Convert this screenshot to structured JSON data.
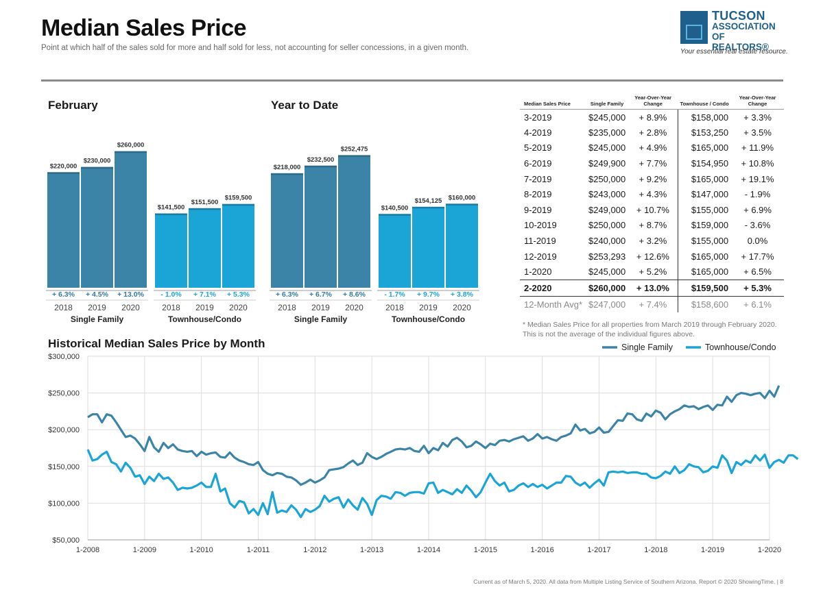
{
  "header": {
    "title": "Median Sales Price",
    "subtitle": "Point at which half of the sales sold for more and half sold for less, not accounting for seller concessions, in a given month."
  },
  "logo": {
    "line1": "TUCSON",
    "line2": "ASSOCIATION",
    "line3": "OF REALTORS®",
    "tagline": "Your essential real estate resource."
  },
  "colors": {
    "single_family": "#3b84a8",
    "townhouse": "#1aa5d6",
    "gridline": "#dddddd"
  },
  "chart_data": [
    {
      "type": "bar",
      "title": "February",
      "groups": [
        {
          "label": "Single Family",
          "years": [
            "2018",
            "2019",
            "2020"
          ],
          "values": [
            220000,
            230000,
            260000
          ],
          "value_labels": [
            "$220,000",
            "$230,000",
            "$260,000"
          ],
          "changes": [
            "+ 6.3%",
            "+ 4.5%",
            "+ 13.0%"
          ]
        },
        {
          "label": "Townhouse/Condo",
          "years": [
            "2018",
            "2019",
            "2020"
          ],
          "values": [
            141500,
            151500,
            159500
          ],
          "value_labels": [
            "$141,500",
            "$151,500",
            "$159,500"
          ],
          "changes": [
            "- 1.0%",
            "+ 7.1%",
            "+ 5.3%"
          ]
        }
      ]
    },
    {
      "type": "bar",
      "title": "Year to Date",
      "groups": [
        {
          "label": "Single Family",
          "years": [
            "2018",
            "2019",
            "2020"
          ],
          "values": [
            218000,
            232500,
            252475
          ],
          "value_labels": [
            "$218,000",
            "$232,500",
            "$252,475"
          ],
          "changes": [
            "+ 6.3%",
            "+ 6.7%",
            "+ 8.6%"
          ]
        },
        {
          "label": "Townhouse/Condo",
          "years": [
            "2018",
            "2019",
            "2020"
          ],
          "values": [
            140500,
            154125,
            160000
          ],
          "value_labels": [
            "$140,500",
            "$154,125",
            "$160,000"
          ],
          "changes": [
            "- 1.7%",
            "+ 9.7%",
            "+ 3.8%"
          ]
        }
      ]
    },
    {
      "type": "line",
      "title": "Historical Median Sales Price by Month",
      "ylim": [
        50000,
        300000
      ],
      "yticks": [
        "$50,000",
        "$100,000",
        "$150,000",
        "$200,000",
        "$250,000",
        "$300,000"
      ],
      "xticks": [
        "1-2008",
        "1-2009",
        "1-2010",
        "1-2011",
        "1-2012",
        "1-2013",
        "1-2014",
        "1-2015",
        "1-2016",
        "1-2017",
        "1-2018",
        "1-2019",
        "1-2020"
      ],
      "legend": "top-right",
      "start": "1-2008",
      "series": [
        {
          "name": "Single Family",
          "values": [
            217000,
            221000,
            221000,
            210000,
            221000,
            219000,
            210000,
            200000,
            190000,
            192000,
            188000,
            180000,
            171000,
            190000,
            176000,
            170000,
            182000,
            175000,
            180000,
            173000,
            171000,
            170000,
            171000,
            164000,
            170000,
            166000,
            168000,
            169000,
            163000,
            162000,
            169000,
            162000,
            158000,
            156000,
            153000,
            152000,
            156000,
            145000,
            140000,
            138000,
            141000,
            140000,
            136000,
            135000,
            131000,
            125000,
            128000,
            132000,
            128000,
            131000,
            135000,
            145000,
            146000,
            147000,
            149000,
            154000,
            158000,
            152000,
            155000,
            168000,
            163000,
            160000,
            163000,
            167000,
            170000,
            173000,
            174000,
            173000,
            175000,
            171000,
            170000,
            178000,
            168000,
            175000,
            172000,
            182000,
            177000,
            186000,
            189000,
            184000,
            176000,
            178000,
            184000,
            180000,
            175000,
            181000,
            179000,
            185000,
            186000,
            184000,
            187000,
            189000,
            191000,
            185000,
            188000,
            194000,
            188000,
            190000,
            187000,
            185000,
            190000,
            192000,
            195000,
            207000,
            199000,
            201000,
            195000,
            197000,
            203000,
            196000,
            197000,
            205000,
            213000,
            212000,
            222000,
            221000,
            214000,
            212000,
            222000,
            218000,
            226000,
            223000,
            214000,
            221000,
            225000,
            228000,
            233000,
            231000,
            232000,
            228000,
            231000,
            233000,
            227000,
            234000,
            233000,
            245000,
            238000,
            247000,
            250000,
            249000,
            247000,
            249000,
            250000,
            243000,
            253000,
            245000,
            260000
          ]
        },
        {
          "name": "Townhouse/Condo",
          "values": [
            173000,
            158000,
            160000,
            166000,
            170000,
            156000,
            153000,
            143000,
            155000,
            148000,
            136000,
            138000,
            126000,
            136000,
            130000,
            140000,
            133000,
            135000,
            128000,
            118000,
            121000,
            120000,
            121000,
            124000,
            128000,
            122000,
            122000,
            140000,
            116000,
            120000,
            100000,
            94000,
            103000,
            101000,
            86000,
            92000,
            84000,
            100000,
            85000,
            115000,
            87000,
            90000,
            88000,
            97000,
            91000,
            81000,
            92000,
            88000,
            91000,
            96000,
            110000,
            102000,
            106000,
            108000,
            94000,
            105000,
            97000,
            91000,
            107000,
            99000,
            84000,
            104000,
            110000,
            109000,
            106000,
            115000,
            114000,
            110000,
            114000,
            115000,
            115000,
            113000,
            127000,
            128000,
            114000,
            118000,
            115000,
            112000,
            119000,
            114000,
            124000,
            117000,
            108000,
            115000,
            128000,
            140000,
            130000,
            124000,
            128000,
            116000,
            118000,
            124000,
            127000,
            122000,
            126000,
            122000,
            125000,
            120000,
            124000,
            128000,
            128000,
            137000,
            136000,
            128000,
            124000,
            128000,
            121000,
            127000,
            132000,
            124000,
            142000,
            143000,
            142000,
            143000,
            141000,
            142000,
            142000,
            140000,
            140000,
            135000,
            134000,
            137000,
            143000,
            140000,
            150000,
            141000,
            145000,
            153000,
            150000,
            149000,
            142000,
            144000,
            150000,
            148000,
            165000,
            158000,
            141000,
            156000,
            152000,
            158000,
            155000,
            165000,
            158000,
            166000,
            148000,
            156000,
            159000,
            155000,
            165000,
            165000,
            160000
          ]
        }
      ]
    }
  ],
  "table": {
    "headers": [
      "Median Sales Price",
      "Single Family",
      "Year-Over-Year Change",
      "Townhouse / Condo",
      "Year-Over-Year Change"
    ],
    "rows": [
      [
        "3-2019",
        "$245,000",
        "+ 8.9%",
        "$158,000",
        "+ 3.3%"
      ],
      [
        "4-2019",
        "$235,000",
        "+ 2.8%",
        "$153,250",
        "+ 3.5%"
      ],
      [
        "5-2019",
        "$245,000",
        "+ 4.9%",
        "$165,000",
        "+ 11.9%"
      ],
      [
        "6-2019",
        "$249,900",
        "+ 7.7%",
        "$154,950",
        "+ 10.8%"
      ],
      [
        "7-2019",
        "$250,000",
        "+ 9.2%",
        "$165,000",
        "+ 19.1%"
      ],
      [
        "8-2019",
        "$243,000",
        "+ 4.3%",
        "$147,000",
        "- 1.9%"
      ],
      [
        "9-2019",
        "$249,000",
        "+ 10.7%",
        "$155,000",
        "+ 6.9%"
      ],
      [
        "10-2019",
        "$250,000",
        "+ 8.7%",
        "$159,000",
        "- 3.6%"
      ],
      [
        "11-2019",
        "$240,000",
        "+ 3.2%",
        "$155,000",
        "0.0%"
      ],
      [
        "12-2019",
        "$253,293",
        "+ 12.6%",
        "$165,000",
        "+ 17.7%"
      ],
      [
        "1-2020",
        "$245,000",
        "+ 5.2%",
        "$165,000",
        "+ 6.5%"
      ]
    ],
    "current": [
      "2-2020",
      "$260,000",
      "+ 13.0%",
      "$159,500",
      "+ 5.3%"
    ],
    "average": [
      "12-Month Avg*",
      "$247,000",
      "+ 7.4%",
      "$158,600",
      "+ 6.1%"
    ],
    "footnote": "* Median Sales Price for all properties from March 2019 through February 2020. This is not the average of the individual figures above."
  },
  "footer": "Current as of March 5, 2020. All data from Multiple Listing Service of Southern Arizona. Report © 2020 ShowingTime. | 8"
}
